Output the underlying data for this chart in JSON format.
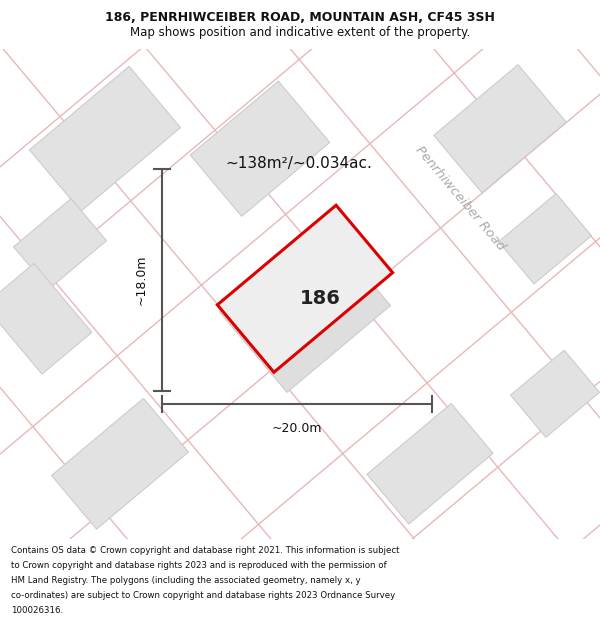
{
  "title_line1": "186, PENRHIWCEIBER ROAD, MOUNTAIN ASH, CF45 3SH",
  "title_line2": "Map shows position and indicative extent of the property.",
  "footer_lines": [
    "Contains OS data © Crown copyright and database right 2021. This information is subject",
    "to Crown copyright and database rights 2023 and is reproduced with the permission of",
    "HM Land Registry. The polygons (including the associated geometry, namely x, y",
    "co-ordinates) are subject to Crown copyright and database rights 2023 Ordnance Survey",
    "100026316."
  ],
  "area_label": "~138m²/~0.034ac.",
  "property_number": "186",
  "dim_width": "~20.0m",
  "dim_height": "~18.0m",
  "road_label": "Penrhiwceiber Road",
  "bg_color": "#f0f0f0",
  "outline_color": "#dd0000",
  "road_stripe_color": "#e8b8b8",
  "building_fc": "#e2e2e2",
  "building_ec": "#cccccc",
  "dim_color": "#555555",
  "text_color": "#111111",
  "road_text_color": "#aaaaaa",
  "title_fontsize": 9,
  "subtitle_fontsize": 8.5,
  "footer_fontsize": 6.2,
  "area_fontsize": 11,
  "prop_num_fontsize": 14,
  "road_fontsize": 9.5,
  "dim_fontsize": 9
}
